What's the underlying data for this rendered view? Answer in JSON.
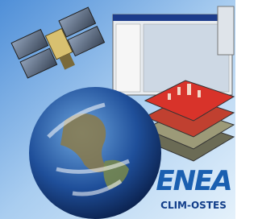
{
  "logo": {
    "name": "ENEA",
    "subtitle": "CLIM-OSTES"
  }
}
